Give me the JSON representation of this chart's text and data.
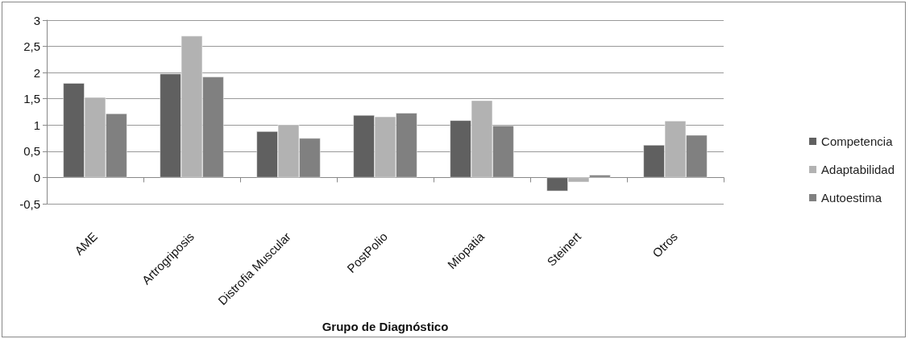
{
  "chart_data": {
    "type": "bar",
    "xlabel": "Grupo de Diagnóstico",
    "categories": [
      "AME",
      "Artrogriposis",
      "Distrofia Muscular",
      "PostPolio",
      "Miopatia",
      "Steinert",
      "Otros"
    ],
    "series": [
      {
        "name": "Competencia",
        "color": "#606060",
        "values": [
          1.8,
          1.98,
          0.88,
          1.19,
          1.09,
          -0.26,
          0.62
        ]
      },
      {
        "name": "Adaptabilidad",
        "color": "#b2b2b2",
        "values": [
          1.53,
          2.7,
          1.01,
          1.16,
          1.47,
          -0.09,
          1.08
        ]
      },
      {
        "name": "Autoestima",
        "color": "#808080",
        "values": [
          1.22,
          1.92,
          0.75,
          1.23,
          0.99,
          0.05,
          0.81
        ]
      }
    ],
    "ylim": [
      -0.5,
      3
    ],
    "yticks": [
      {
        "value": -0.5,
        "label": "-0,5"
      },
      0,
      {
        "value": 0.5,
        "label": "0,5"
      },
      1,
      {
        "value": 1.5,
        "label": "1,5"
      },
      2,
      {
        "value": 2.5,
        "label": "2,5"
      },
      3
    ],
    "grid": "y",
    "legend": "right"
  }
}
